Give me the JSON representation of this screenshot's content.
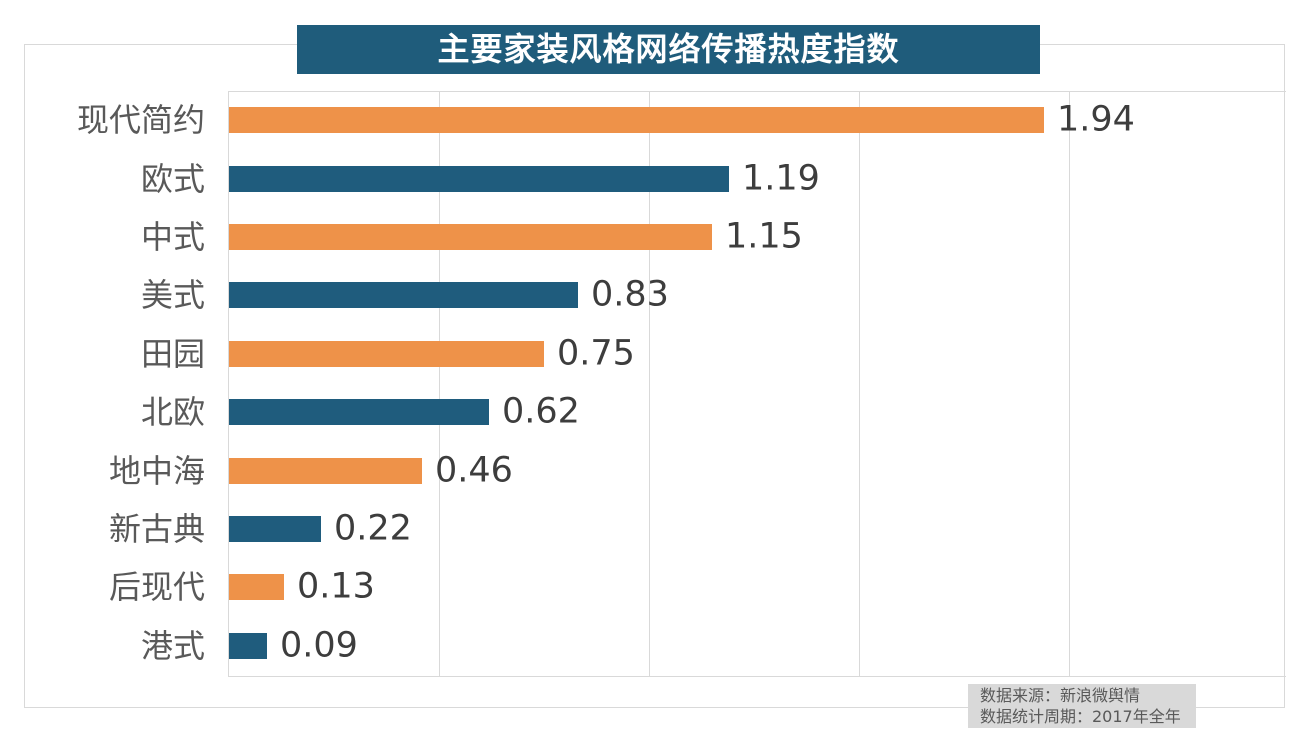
{
  "title": "主要家装风格网络传播热度指数",
  "chart_data": {
    "type": "bar",
    "orientation": "horizontal",
    "title": "主要家装风格网络传播热度指数",
    "categories": [
      "现代简约",
      "欧式",
      "中式",
      "美式",
      "田园",
      "北欧",
      "地中海",
      "新古典",
      "后现代",
      "港式"
    ],
    "values": [
      1.94,
      1.19,
      1.15,
      0.83,
      0.75,
      0.62,
      0.46,
      0.22,
      0.13,
      0.09
    ],
    "value_labels": [
      "1.94",
      "1.19",
      "1.15",
      "0.83",
      "0.75",
      "0.62",
      "0.46",
      "0.22",
      "0.13",
      "0.09"
    ],
    "xlabel": "",
    "ylabel": "",
    "xlim": [
      0,
      2.5
    ],
    "gridlines_x": [
      0,
      0.5,
      1.0,
      1.5,
      2.0
    ],
    "grid": true,
    "legend_position": "none",
    "bar_color_even": "#ee9249",
    "bar_color_odd": "#1f5c7d"
  },
  "footer": {
    "source_line": "数据来源：新浪微舆情",
    "period_line": "数据统计周期：2017年全年"
  },
  "colors": {
    "background": "#ffffff",
    "title_bg": "#1f5c7b",
    "title_text": "#ffffff",
    "category_text": "#595959",
    "value_text": "#3d3d3d",
    "gridline": "#d9d9d9",
    "border": "#d9d9d9",
    "footer_bg": "#d9d9d9",
    "footer_text": "#595959"
  }
}
